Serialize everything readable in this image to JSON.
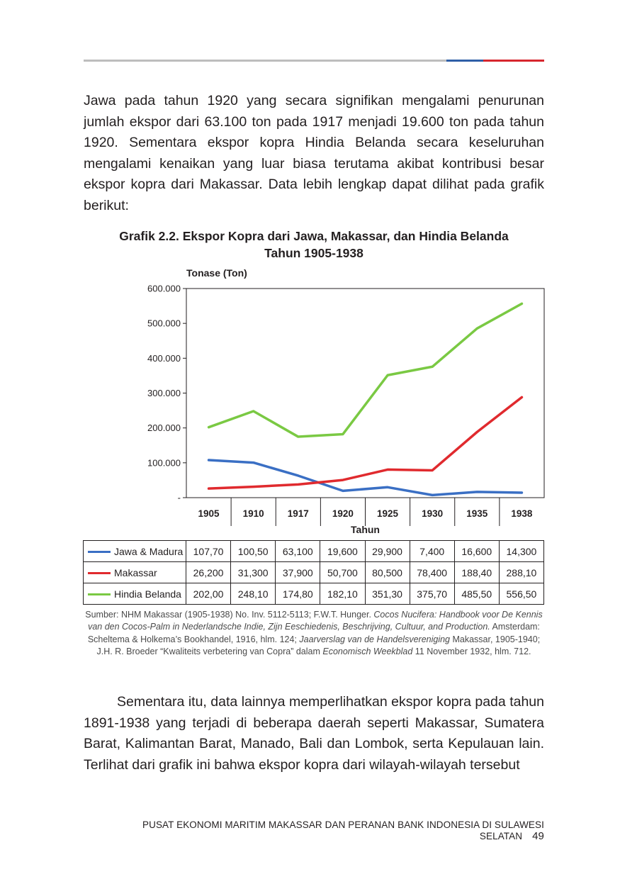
{
  "page": {
    "paragraph_1": "Jawa pada tahun 1920 yang secara signifikan mengalami penurunan jumlah ekspor dari 63.100 ton pada 1917 menjadi 19.600 ton pada tahun 1920. Sementara ekspor kopra Hindia Belanda secara keseluruhan mengalami kenaikan yang luar biasa terutama akibat kontribusi besar ekspor kopra dari Makassar. Data lebih lengkap dapat dilihat pada grafik berikut:",
    "paragraph_2": "Sementara itu, data lainnya memperlihatkan ekspor kopra pada tahun 1891-1938 yang terjadi di beberapa daerah seperti Makassar, Sumatera Barat, Kalimantan Barat, Manado, Bali dan Lombok, serta Kepulauan lain. Terlihat dari grafik ini bahwa ekspor kopra dari wilayah-wilayah tersebut",
    "footer_text": "PUSAT EKONOMI MARITIM MAKASSAR DAN PERANAN BANK INDONESIA DI SULAWESI SELATAN",
    "page_number": "49"
  },
  "source": {
    "part_1": "Sumber: NHM Makassar (1905-1938) No. Inv. 5112-5113; F.W.T. Hunger. ",
    "italic_1": "Cocos Nucifera: Handbook voor De Kennis van den Cocos-Palm in Nederlandsche Indie, Zijn Eeschiedenis, Beschrijving, Cultuur, and Production.",
    "part_2": " Amsterdam: Scheltema & Holkema’s Bookhandel, 1916, hlm. 124; ",
    "italic_2": "Jaarverslag van de Handelsvereniging",
    "part_3": " Makassar, 1905-1940; J.H. R. Broeder “Kwaliteits verbetering van Copra” dalam ",
    "italic_3": "Economisch Weekblad",
    "part_4": " 11 November 1932, hlm. 712."
  },
  "chart_data": {
    "type": "line",
    "title_line_1": "Grafik 2.2. Ekspor Kopra dari Jawa, Makassar, dan Hindia Belanda",
    "title_line_2": "Tahun 1905-1938",
    "ylabel": "Tonase (Ton)",
    "xlabel": "Tahun",
    "ylim": [
      0,
      600000
    ],
    "y_ticks": [
      0,
      100000,
      200000,
      300000,
      400000,
      500000,
      600000
    ],
    "y_tick_labels": [
      "-",
      "100.000",
      "200.000",
      "300.000",
      "400.000",
      "500.000",
      "600.000"
    ],
    "categories": [
      "1905",
      "1910",
      "1917",
      "1920",
      "1925",
      "1930",
      "1935",
      "1938"
    ],
    "grid": false,
    "legend": "table-below",
    "series": [
      {
        "name": "Jawa & Madura",
        "color": "#3a6fc4",
        "values": [
          107700,
          100500,
          63100,
          19600,
          29900,
          7400,
          16600,
          14300
        ],
        "table_labels": [
          "107,70",
          "100,50",
          "63,100",
          "19,600",
          "29,900",
          "7,400",
          "16,600",
          "14,300"
        ]
      },
      {
        "name": "Makassar",
        "color": "#e02a2e",
        "values": [
          26200,
          31300,
          37900,
          50700,
          80500,
          78400,
          188400,
          288100
        ],
        "table_labels": [
          "26,200",
          "31,300",
          "37,900",
          "50,700",
          "80,500",
          "78,400",
          "188,40",
          "288,10"
        ]
      },
      {
        "name": "Hindia Belanda",
        "color": "#7ac943",
        "values": [
          202000,
          248100,
          174800,
          182100,
          351300,
          375700,
          485500,
          556500
        ],
        "table_labels": [
          "202,00",
          "248,10",
          "174,80",
          "182,10",
          "351,30",
          "375,70",
          "485,50",
          "556,50"
        ]
      }
    ]
  }
}
